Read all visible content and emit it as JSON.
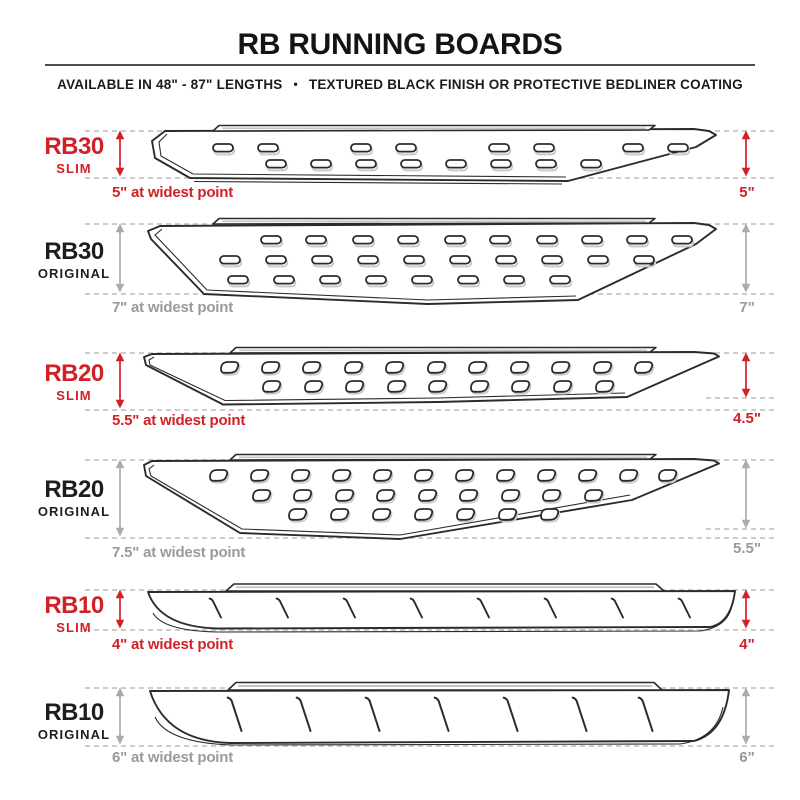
{
  "header": {
    "title": "RB RUNNING BOARDS",
    "subtitle_left": "AVAILABLE IN 48\" - 87\" LENGTHS",
    "subtitle_separator": "•",
    "subtitle_right": "TEXTURED BLACK FINISH OR PROTECTIVE BEDLINER COATING"
  },
  "colors": {
    "accent_red": "#d22027",
    "label_black": "#1e1e1e",
    "gray_text": "#9a9a9a",
    "gray_arrow": "#ababab",
    "dashed_guide": "#cccccc",
    "drawing_line": "#2b2b2b"
  },
  "rows": [
    {
      "model": "RB30",
      "variant": "SLIM",
      "widest_label": "5\" at widest point",
      "height_label": "5\"",
      "accent": "red"
    },
    {
      "model": "RB30",
      "variant": "ORIGINAL",
      "widest_label": "7\" at widest point",
      "height_label": "7\"",
      "accent": "gray"
    },
    {
      "model": "RB20",
      "variant": "SLIM",
      "widest_label": "5.5\" at widest point",
      "height_label": "4.5\"",
      "accent": "red"
    },
    {
      "model": "RB20",
      "variant": "ORIGINAL",
      "widest_label": "7.5\" at widest point",
      "height_label": "5.5\"",
      "accent": "gray"
    },
    {
      "model": "RB10",
      "variant": "SLIM",
      "widest_label": "4\" at widest point",
      "height_label": "4\"",
      "accent": "red"
    },
    {
      "model": "RB10",
      "variant": "ORIGINAL",
      "widest_label": "6\" at widest point",
      "height_label": "6\"",
      "accent": "gray"
    }
  ]
}
